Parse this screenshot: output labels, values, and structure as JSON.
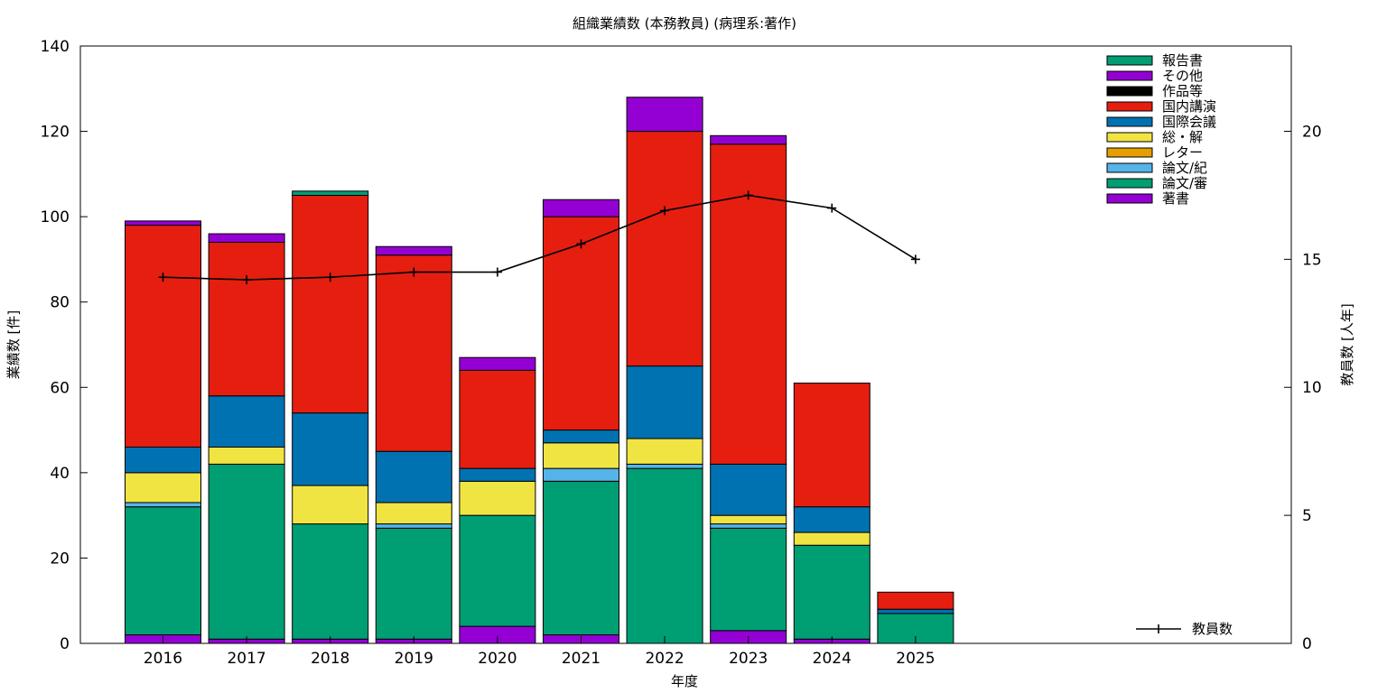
{
  "chart_data": {
    "type": "bar",
    "stacked": true,
    "title": "組織業績数 (本務教員) (病理系:著作)",
    "xlabel": "年度",
    "ylabel": "業績数 [件]",
    "y2label": "教員数 [人年]",
    "ylim": [
      0,
      140
    ],
    "y2lim": [
      0,
      23.33
    ],
    "yticks": [
      "0",
      "20",
      "40",
      "60",
      "80",
      "100",
      "120",
      "140"
    ],
    "y2ticks": [
      "0",
      "5",
      "10",
      "15",
      "20"
    ],
    "grid": false,
    "legend_position": "top-right",
    "categories": [
      "2016",
      "2017",
      "2018",
      "2019",
      "2020",
      "2021",
      "2022",
      "2023",
      "2024",
      "2025"
    ],
    "series": [
      {
        "name": "著書",
        "color": "#9400d3",
        "values": [
          2,
          1,
          1,
          1,
          4,
          2,
          0,
          3,
          1,
          0
        ]
      },
      {
        "name": "論文/審",
        "color": "#009e73",
        "values": [
          30,
          41,
          27,
          26,
          26,
          36,
          41,
          24,
          22,
          7
        ]
      },
      {
        "name": "論文/紀",
        "color": "#56b4e9",
        "values": [
          1,
          0,
          0,
          1,
          0,
          3,
          1,
          1,
          0,
          0
        ]
      },
      {
        "name": "レター",
        "color": "#e69f00",
        "values": [
          0,
          0,
          0,
          0,
          0,
          0,
          0,
          0,
          0,
          0
        ]
      },
      {
        "name": "総・解",
        "color": "#f0e442",
        "values": [
          7,
          4,
          9,
          5,
          8,
          6,
          6,
          2,
          3,
          0
        ]
      },
      {
        "name": "国際会議",
        "color": "#0072b2",
        "values": [
          6,
          12,
          17,
          12,
          3,
          3,
          17,
          12,
          6,
          1
        ]
      },
      {
        "name": "国内講演",
        "color": "#e51e10",
        "values": [
          52,
          36,
          51,
          46,
          23,
          50,
          55,
          75,
          29,
          4
        ]
      },
      {
        "name": "作品等",
        "color": "#000000",
        "values": [
          0,
          0,
          0,
          0,
          0,
          0,
          0,
          0,
          0,
          0
        ]
      },
      {
        "name": "その他",
        "color": "#9400d3",
        "values": [
          1,
          2,
          0,
          2,
          3,
          4,
          8,
          2,
          0,
          0
        ]
      },
      {
        "name": "報告書",
        "color": "#009e73",
        "values": [
          0,
          0,
          1,
          0,
          0,
          0,
          0,
          0,
          0,
          0
        ]
      }
    ],
    "line_series": {
      "name": "教員数",
      "color": "#000000",
      "values": [
        14.3,
        14.2,
        14.3,
        14.5,
        14.5,
        15.6,
        16.9,
        17.5,
        17.0,
        15.0
      ]
    }
  }
}
